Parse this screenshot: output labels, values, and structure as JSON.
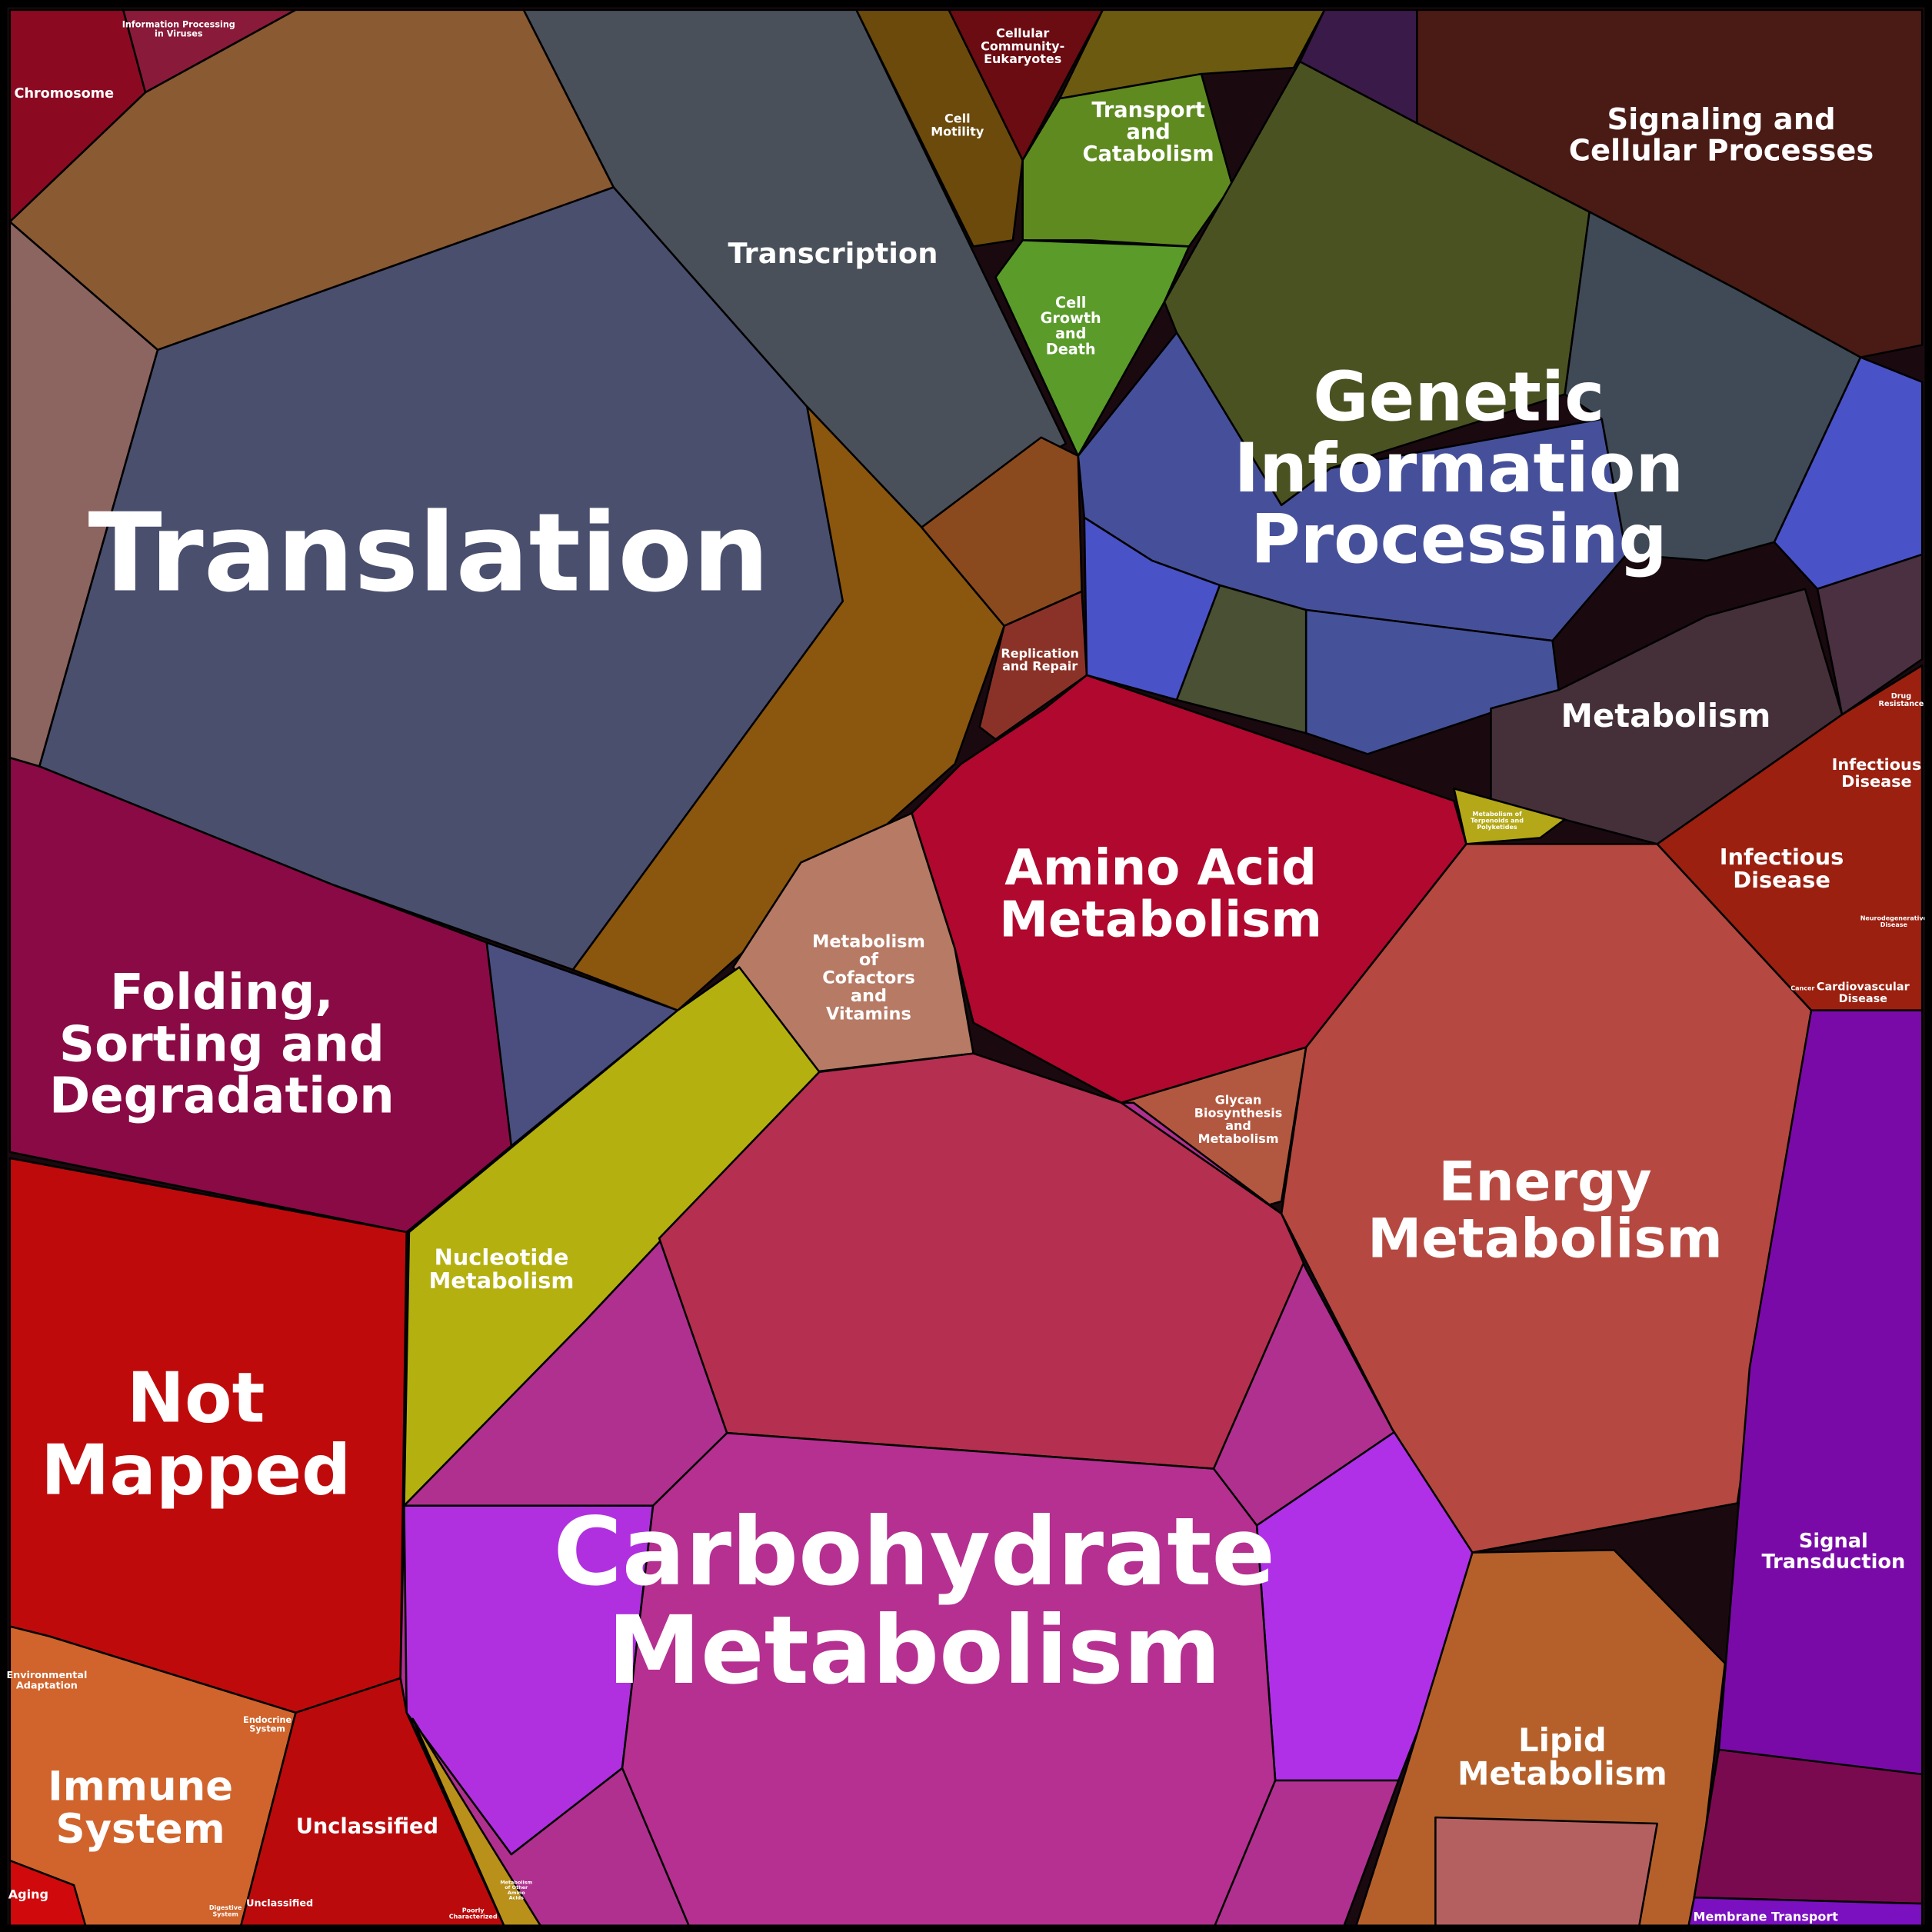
{
  "labels": [
    {
      "lines": [
        "Chromosome"
      ]
    },
    {
      "lines": [
        "Information Processing",
        "in Viruses"
      ]
    },
    {
      "lines": [
        "Cellular",
        "Community-",
        "Eukaryotes"
      ]
    },
    {
      "lines": [
        "Cell",
        "Motility"
      ]
    },
    {
      "lines": [
        "Transport",
        "and",
        "Catabolism"
      ]
    },
    {
      "lines": [
        "Signaling and",
        "Cellular Processes"
      ]
    },
    {
      "lines": [
        "Transcription"
      ]
    },
    {
      "lines": [
        "Cell",
        "Growth",
        "and",
        "Death"
      ]
    },
    {
      "lines": [
        "Translation"
      ]
    },
    {
      "lines": [
        "Genetic",
        "Information",
        "Processing"
      ]
    },
    {
      "lines": [
        "Replication",
        "and Repair"
      ]
    },
    {
      "lines": [
        "Metabolism"
      ]
    },
    {
      "lines": [
        "Drug",
        "Resistance"
      ]
    },
    {
      "lines": [
        "Infectious",
        "Disease"
      ]
    },
    {
      "lines": [
        "Infectious",
        "Disease"
      ]
    },
    {
      "lines": [
        "Metabolism of",
        "Terpenoids and",
        "Polyketides"
      ]
    },
    {
      "lines": [
        "Amino Acid",
        "Metabolism"
      ]
    },
    {
      "lines": [
        "Metabolism",
        "of",
        "Cofactors",
        "and",
        "Vitamins"
      ]
    },
    {
      "lines": [
        "Neurodegenerative",
        "Disease"
      ]
    },
    {
      "lines": [
        "Cardiovascular",
        "Disease"
      ]
    },
    {
      "lines": [
        "Cancer"
      ]
    },
    {
      "lines": [
        "Folding,",
        "Sorting and",
        "Degradation"
      ]
    },
    {
      "lines": [
        "Glycan",
        "Biosynthesis",
        "and",
        "Metabolism"
      ]
    },
    {
      "lines": [
        "Energy",
        "Metabolism"
      ]
    },
    {
      "lines": [
        "Nucleotide",
        "Metabolism"
      ]
    },
    {
      "lines": [
        "Not",
        "Mapped"
      ]
    },
    {
      "lines": [
        "Carbohydrate",
        "Metabolism"
      ]
    },
    {
      "lines": [
        "Signal",
        "Transduction"
      ]
    },
    {
      "lines": [
        "Environmental",
        "Adaptation"
      ]
    },
    {
      "lines": [
        "Endocrine",
        "System"
      ]
    },
    {
      "lines": [
        "Immune",
        "System"
      ]
    },
    {
      "lines": [
        "Unclassified"
      ]
    },
    {
      "lines": [
        "Lipid",
        "Metabolism"
      ]
    },
    {
      "lines": [
        "Aging"
      ]
    },
    {
      "lines": [
        "Digestive",
        "System"
      ]
    },
    {
      "lines": [
        "Unclassified"
      ]
    },
    {
      "lines": [
        "Poorly",
        "Characterized"
      ]
    },
    {
      "lines": [
        "Metabolism",
        "of Other",
        "Amino",
        "Acids"
      ]
    },
    {
      "lines": [
        "Membrane Transport"
      ]
    }
  ]
}
